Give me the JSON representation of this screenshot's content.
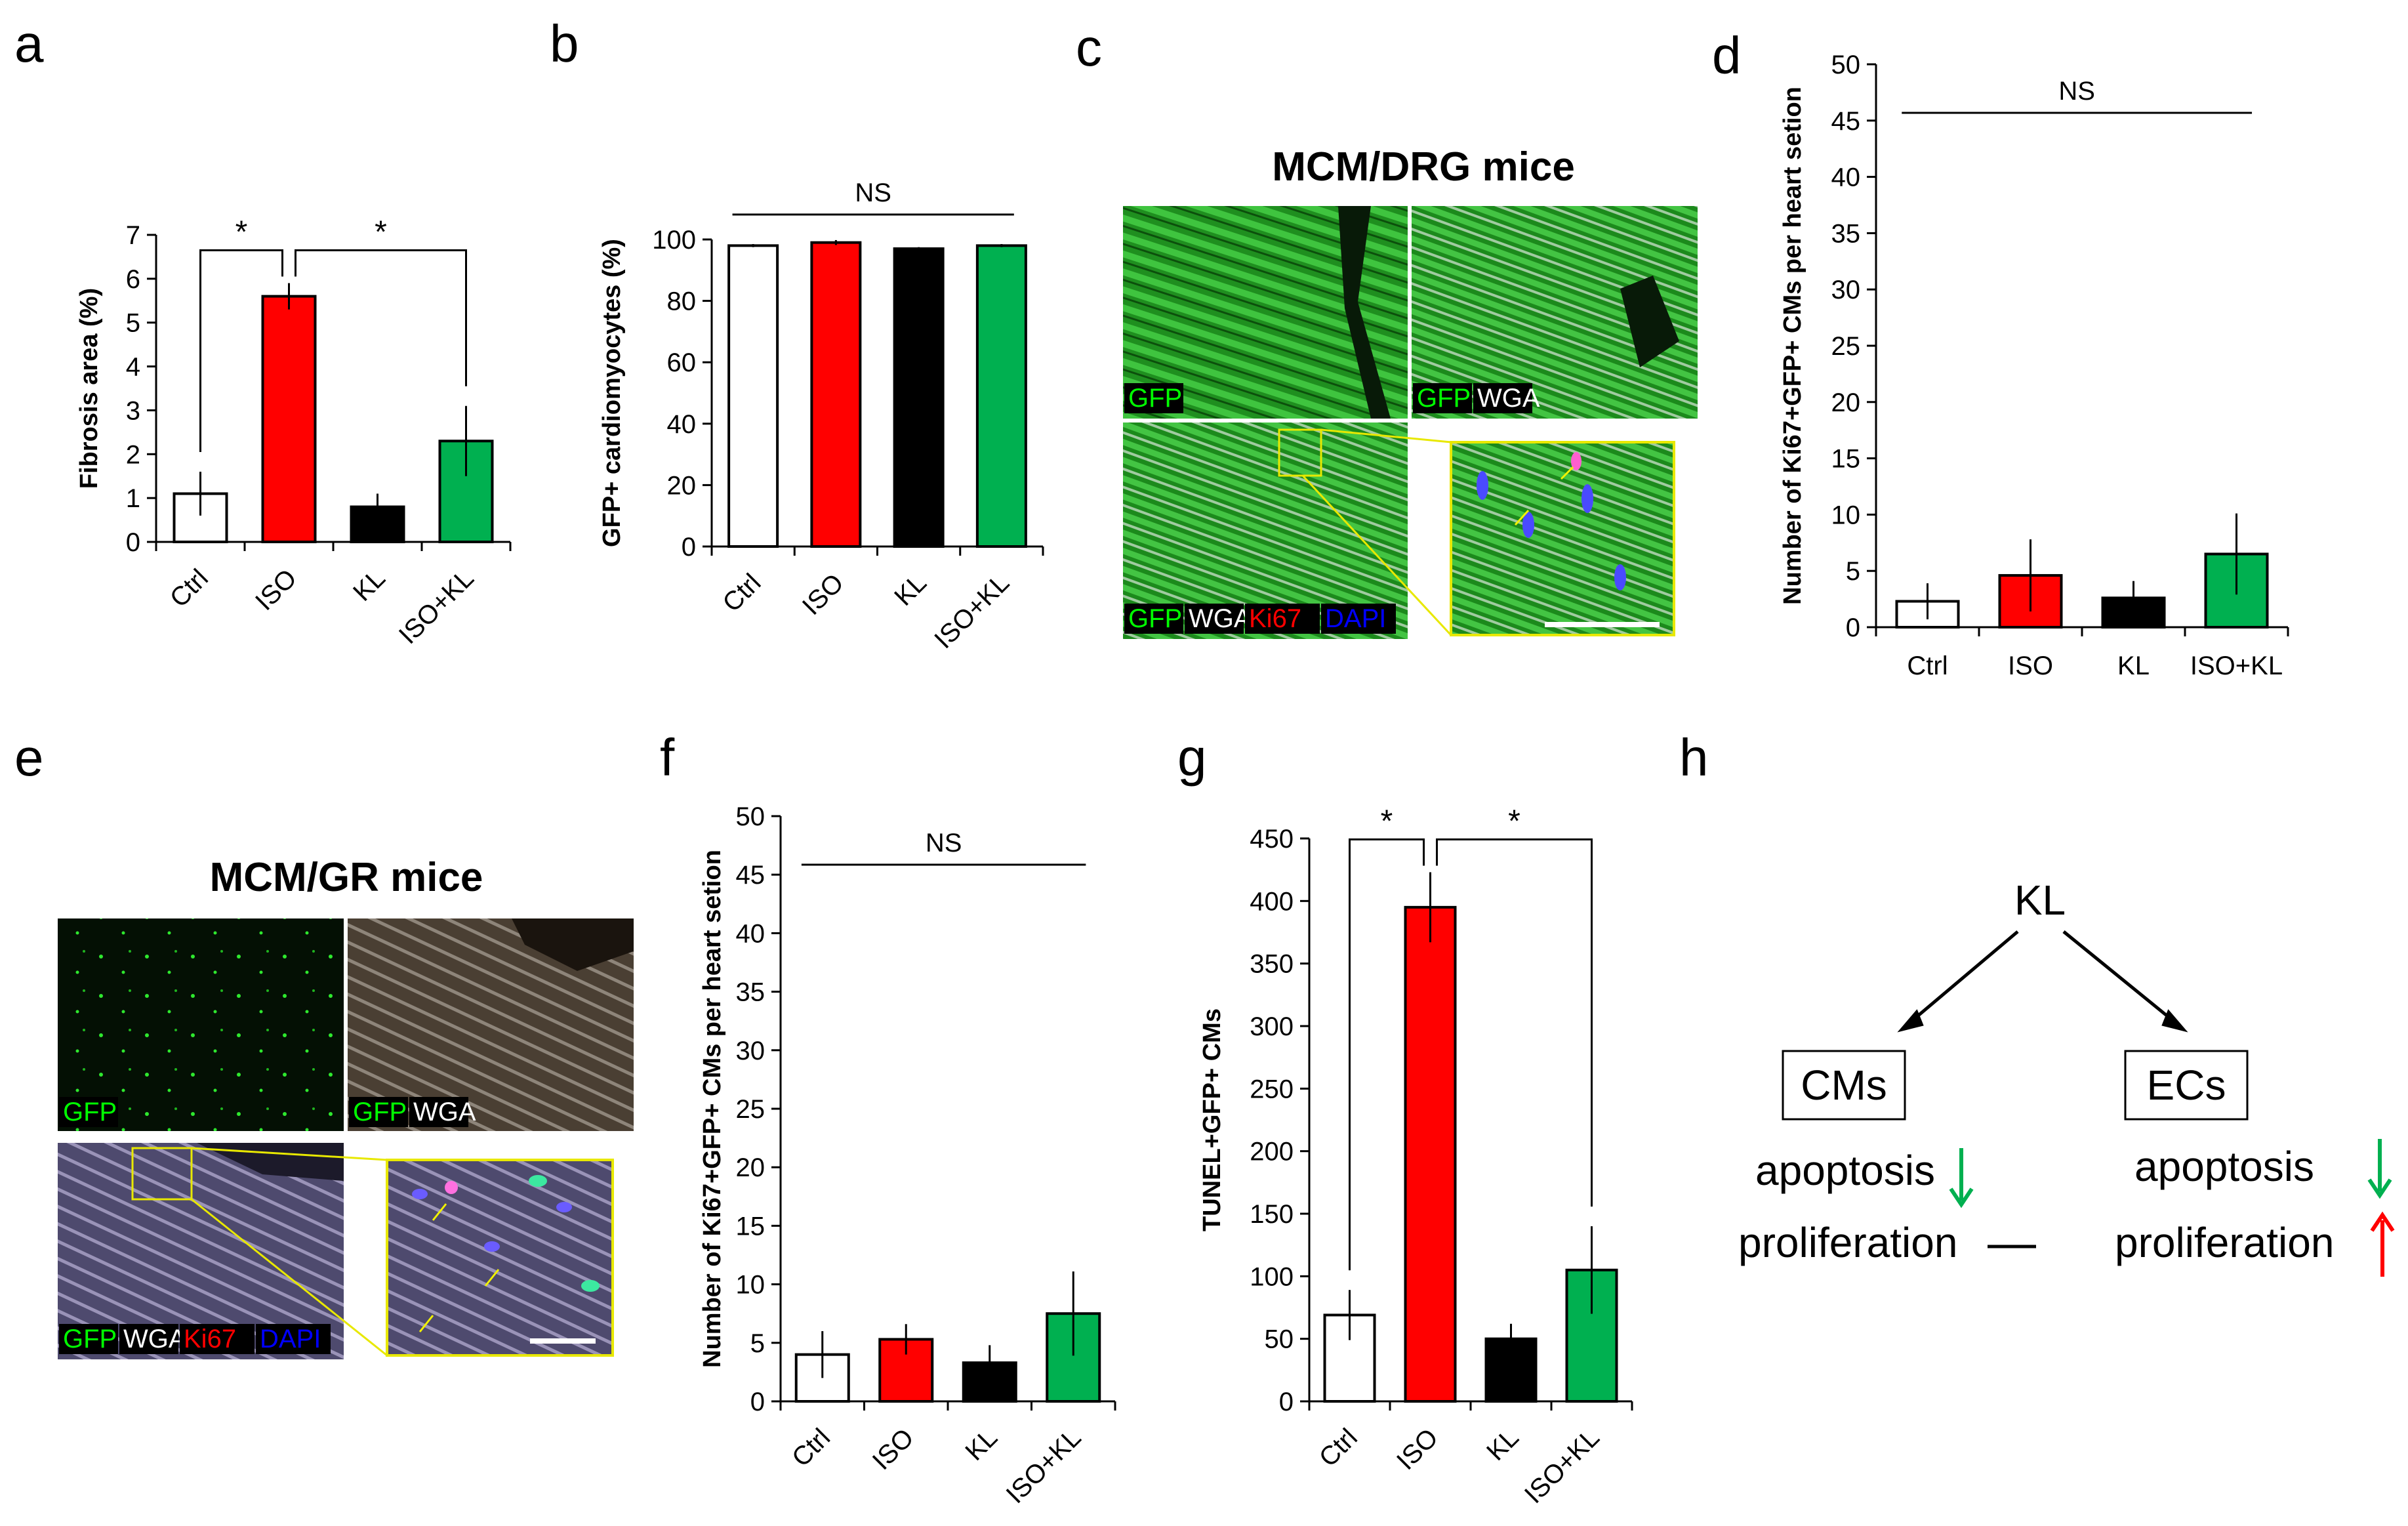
{
  "panels": [
    {
      "letter": "a"
    },
    {
      "letter": "b"
    },
    {
      "letter": "c"
    },
    {
      "letter": "d"
    },
    {
      "letter": "e"
    },
    {
      "letter": "f"
    },
    {
      "letter": "g"
    },
    {
      "letter": "h"
    }
  ],
  "colors": {
    "Ctrl": "#ffffff",
    "ISO": "#ff0000",
    "KL": "#000000",
    "ISO+KL": "#00b050"
  },
  "chart_data": [
    {
      "id": "a",
      "type": "bar",
      "ylabel": "Fibrosis area (%)",
      "categories": [
        "Ctrl",
        "ISO",
        "KL",
        "ISO+KL"
      ],
      "values": [
        1.1,
        5.6,
        0.8,
        2.3
      ],
      "errors": [
        0.5,
        0.3,
        0.3,
        0.8
      ],
      "ylim": [
        0,
        7
      ],
      "yticks": [
        0,
        1,
        2,
        3,
        4,
        5,
        6,
        7
      ],
      "annotations": [
        {
          "from": 0,
          "to": 1,
          "text": "*"
        },
        {
          "from": 1,
          "to": 3,
          "text": "*"
        }
      ]
    },
    {
      "id": "b",
      "type": "bar",
      "ylabel": "GFP+ cardiomyocytes (%)",
      "categories": [
        "Ctrl",
        "ISO",
        "KL",
        "ISO+KL"
      ],
      "values": [
        98,
        99,
        97,
        98
      ],
      "errors": [
        0.5,
        0.8,
        0.5,
        0.5
      ],
      "ylim": [
        0,
        100
      ],
      "yticks": [
        0,
        20,
        40,
        60,
        80,
        100
      ],
      "annotations": [
        {
          "from": 0,
          "to": 3,
          "text": "NS"
        }
      ]
    },
    {
      "id": "d",
      "type": "bar",
      "ylabel": "Number of Ki67+GFP+ CMs per heart setion",
      "categories": [
        "Ctrl",
        "ISO",
        "KL",
        "ISO+KL"
      ],
      "values": [
        2.3,
        4.6,
        2.6,
        6.5
      ],
      "errors": [
        1.6,
        3.2,
        1.5,
        3.6
      ],
      "ylim": [
        0,
        50
      ],
      "yticks": [
        0,
        5,
        10,
        15,
        20,
        25,
        30,
        35,
        40,
        45,
        50
      ],
      "annotations": [
        {
          "from": 0,
          "to": 3,
          "text": "NS"
        }
      ]
    },
    {
      "id": "f",
      "type": "bar",
      "ylabel": "Number of Ki67+GFP+ CMs per heart setion",
      "categories": [
        "Ctrl",
        "ISO",
        "KL",
        "ISO+KL"
      ],
      "values": [
        4.0,
        5.3,
        3.3,
        7.5
      ],
      "errors": [
        2.0,
        1.3,
        1.5,
        3.6
      ],
      "ylim": [
        0,
        50
      ],
      "yticks": [
        0,
        5,
        10,
        15,
        20,
        25,
        30,
        35,
        40,
        45,
        50
      ],
      "annotations": [
        {
          "from": 0,
          "to": 3,
          "text": "NS"
        }
      ]
    },
    {
      "id": "g",
      "type": "bar",
      "ylabel": "TUNEL+GFP+ CMs",
      "categories": [
        "Ctrl",
        "ISO",
        "KL",
        "ISO+KL"
      ],
      "values": [
        69,
        395,
        50,
        105
      ],
      "errors": [
        20,
        28,
        12,
        35
      ],
      "ylim": [
        0,
        450
      ],
      "yticks": [
        0,
        50,
        100,
        150,
        200,
        250,
        300,
        350,
        400,
        450
      ],
      "annotations": [
        {
          "from": 0,
          "to": 1,
          "text": "*"
        },
        {
          "from": 1,
          "to": 3,
          "text": "*"
        }
      ]
    }
  ],
  "micrographs": [
    {
      "id": "c",
      "title": "MCM/DRG mice",
      "tiles": [
        {
          "channels": [
            "GFP"
          ]
        },
        {
          "channels": [
            "GFP",
            "WGA"
          ]
        },
        {
          "channels": [
            "GFP",
            "WGA",
            "Ki67",
            "DAPI"
          ]
        }
      ],
      "channel_colors": {
        "GFP": "#00ff00",
        "WGA": "#ffffff",
        "Ki67": "#ff0000",
        "DAPI": "#0000ff"
      }
    },
    {
      "id": "e",
      "title": "MCM/GR mice",
      "tiles": [
        {
          "channels": [
            "GFP"
          ]
        },
        {
          "channels": [
            "GFP",
            "WGA"
          ]
        },
        {
          "channels": [
            "GFP",
            "WGA",
            "Ki67",
            "DAPI"
          ]
        }
      ],
      "channel_colors": {
        "GFP": "#00ff00",
        "WGA": "#ffffff",
        "Ki67": "#ff0000",
        "DAPI": "#0000ff"
      }
    }
  ],
  "scheme": {
    "root": "KL",
    "left": {
      "box": "CMs",
      "apoptosis": "apoptosis",
      "proliferation": "proliferation"
    },
    "right": {
      "box": "ECs",
      "apoptosis": "apoptosis",
      "proliferation": "proliferation"
    },
    "arrow_colors": {
      "down": "#00b050",
      "up": "#ff0000"
    }
  }
}
